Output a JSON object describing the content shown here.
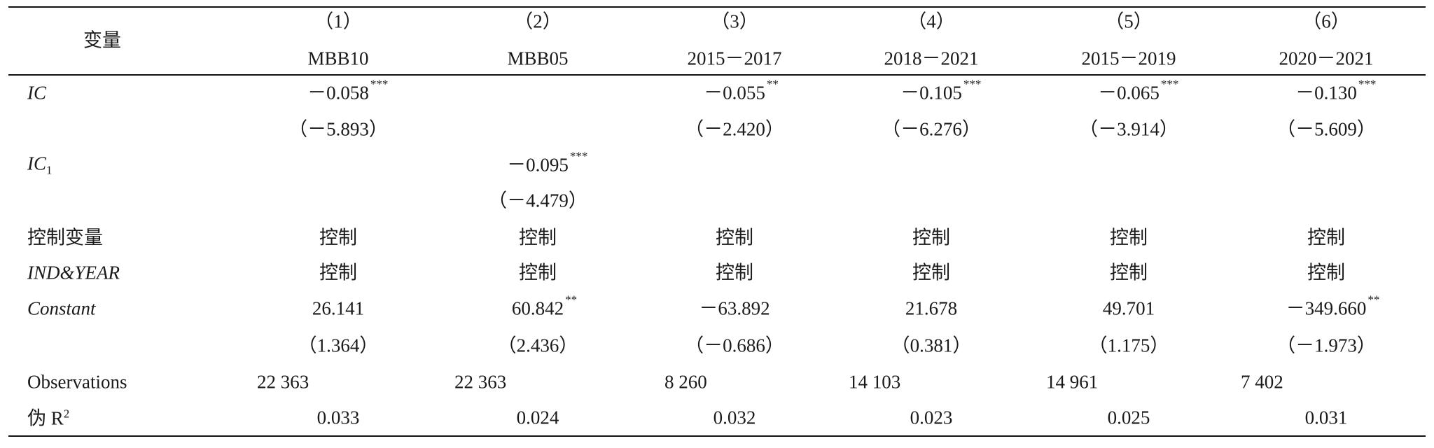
{
  "header": {
    "label": "变量",
    "columns": [
      {
        "number": "（1）",
        "title": "MBB10"
      },
      {
        "number": "（2）",
        "title": "MBB05"
      },
      {
        "number": "（3）",
        "title": "2015－2017"
      },
      {
        "number": "（4）",
        "title": "2018－2021"
      },
      {
        "number": "（5）",
        "title": "2015－2019"
      },
      {
        "number": "（6）",
        "title": "2020－2021"
      }
    ]
  },
  "rows": [
    {
      "label": "IC",
      "cells": [
        {
          "value": "－0.058",
          "sig": "***"
        },
        null,
        {
          "value": "－0.055",
          "sig": "**"
        },
        {
          "value": "－0.105",
          "sig": "***"
        },
        {
          "value": "－0.065",
          "sig": "***"
        },
        {
          "value": "－0.130",
          "sig": "***"
        }
      ]
    },
    {
      "cells": [
        {
          "value": "（－5.893）"
        },
        null,
        {
          "value": "（－2.420）"
        },
        {
          "value": "（－6.276）"
        },
        {
          "value": "（－3.914）"
        },
        {
          "value": "（－5.609）"
        }
      ]
    },
    {
      "label": "IC",
      "label_sub": "1",
      "cells": [
        null,
        {
          "value": "－0.095",
          "sig": "***"
        },
        null,
        null,
        null,
        null
      ]
    },
    {
      "cells": [
        null,
        {
          "value": "（－4.479）"
        },
        null,
        null,
        null,
        null
      ]
    },
    {
      "label": "控制变量",
      "cells": [
        {
          "value": "控制"
        },
        {
          "value": "控制"
        },
        {
          "value": "控制"
        },
        {
          "value": "控制"
        },
        {
          "value": "控制"
        },
        {
          "value": "控制"
        }
      ]
    },
    {
      "label": "IND&YEAR",
      "cells": [
        {
          "value": "控制"
        },
        {
          "value": "控制"
        },
        {
          "value": "控制"
        },
        {
          "value": "控制"
        },
        {
          "value": "控制"
        },
        {
          "value": "控制"
        }
      ]
    },
    {
      "label": "Constant",
      "cells": [
        {
          "value": "26.141"
        },
        {
          "value": "60.842",
          "sig": "**"
        },
        {
          "value": "－63.892"
        },
        {
          "value": "21.678"
        },
        {
          "value": "49.701"
        },
        {
          "value": "－349.660",
          "sig": "**"
        }
      ]
    },
    {
      "cells": [
        {
          "value": "（1.364）"
        },
        {
          "value": "（2.436）"
        },
        {
          "value": "（－0.686）"
        },
        {
          "value": "（0.381）"
        },
        {
          "value": "（1.175）"
        },
        {
          "value": "（－1.973）"
        }
      ]
    },
    {
      "label": "Observations",
      "cells": [
        {
          "value": "22 363"
        },
        {
          "value": "22 363"
        },
        {
          "value": "8 260"
        },
        {
          "value": "14 103"
        },
        {
          "value": "14 961"
        },
        {
          "value": "7 402"
        }
      ]
    },
    {
      "label": "伪 R",
      "label_sup": "2",
      "cells": [
        {
          "value": "0.033"
        },
        {
          "value": "0.024"
        },
        {
          "value": "0.032"
        },
        {
          "value": "0.023"
        },
        {
          "value": "0.025"
        },
        {
          "value": "0.031"
        }
      ]
    }
  ]
}
